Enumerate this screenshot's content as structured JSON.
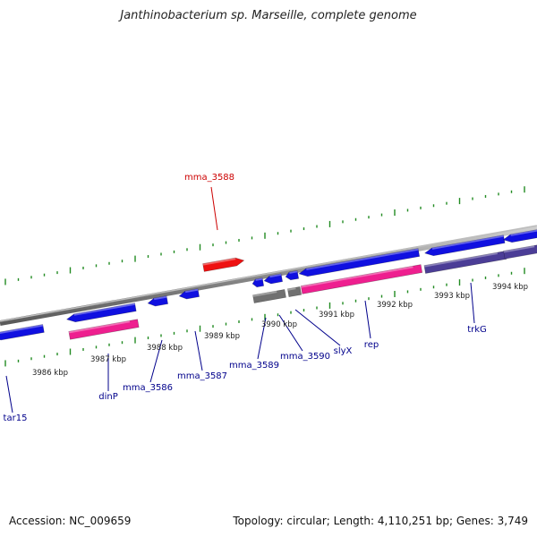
{
  "title": "Janthinobacterium sp. Marseille, complete genome",
  "footer": {
    "accession": "Accession: NC_009659",
    "info": "Topology: circular; Length: 4,110,251 bp; Genes: 3,749"
  },
  "colors": {
    "backbone": "#888888",
    "tick": "#228B22",
    "gene_blue": "#1010e0",
    "gene_pink": "#ee1f8f",
    "gene_gray": "#707070",
    "gene_purple": "#4b3d96",
    "gene_red": "#ee1111",
    "label_blue": "#00008b",
    "label_red": "#cc0000"
  },
  "scale_labels": [
    "3986 kbp",
    "3987 kbp",
    "3988 kbp",
    "3989 kbp",
    "3990 kbp",
    "3991 kbp",
    "3992 kbp",
    "3993 kbp",
    "3994 kbp"
  ],
  "gene_labels": [
    {
      "text": "tar15",
      "color": "blue"
    },
    {
      "text": "dinP",
      "color": "blue"
    },
    {
      "text": "mma_3586",
      "color": "blue"
    },
    {
      "text": "mma_3587",
      "color": "blue"
    },
    {
      "text": "mma_3589",
      "color": "blue"
    },
    {
      "text": "mma_3590",
      "color": "blue"
    },
    {
      "text": "slyX",
      "color": "blue"
    },
    {
      "text": "rep",
      "color": "blue"
    },
    {
      "text": "trkG",
      "color": "blue"
    },
    {
      "text": "mma_3588",
      "color": "red"
    }
  ]
}
